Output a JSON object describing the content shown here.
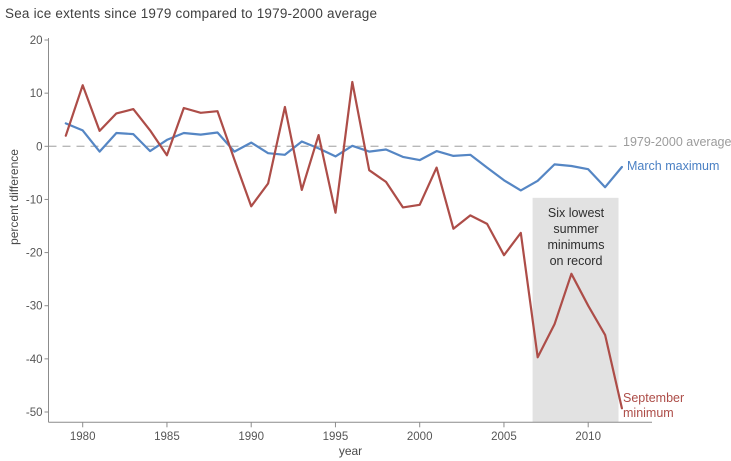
{
  "chart_data": {
    "type": "line",
    "title": "Sea ice extents since 1979 compared to 1979-2000 average",
    "xlabel": "year",
    "ylabel": "percent difference",
    "xlim": [
      1978,
      2014
    ],
    "ylim": [
      -50,
      20
    ],
    "xticks": [
      1980,
      1985,
      1990,
      1995,
      2000,
      2005,
      2010
    ],
    "yticks": [
      20,
      10,
      0,
      -10,
      -20,
      -30,
      -40,
      -50
    ],
    "grid": false,
    "legend_position": "right-edge-inline-labels",
    "zero_line": {
      "value": 0,
      "style": "dashed",
      "label": "1979-2000 average",
      "color": "#b8b8b8"
    },
    "x": [
      1979,
      1980,
      1981,
      1982,
      1983,
      1984,
      1985,
      1986,
      1987,
      1988,
      1989,
      1990,
      1991,
      1992,
      1993,
      1994,
      1995,
      1996,
      1997,
      1998,
      1999,
      2000,
      2001,
      2002,
      2003,
      2004,
      2005,
      2006,
      2007,
      2008,
      2009,
      2010,
      2011,
      2012
    ],
    "series": [
      {
        "name": "March maximum",
        "color": "#5586c4",
        "values": [
          4.3,
          3.0,
          -1.0,
          2.5,
          2.3,
          -0.9,
          1.2,
          2.5,
          2.2,
          2.6,
          -1.0,
          0.7,
          -1.3,
          -1.6,
          0.9,
          -0.4,
          -1.9,
          0.1,
          -1.0,
          -0.6,
          -2.0,
          -2.6,
          -0.9,
          -1.8,
          -1.6,
          -4.0,
          -6.4,
          -8.3,
          -6.5,
          -3.4,
          -3.7,
          -4.3,
          -7.7,
          -3.9
        ]
      },
      {
        "name": "September minimum",
        "color": "#ad4d48",
        "values": [
          2.0,
          11.5,
          2.9,
          6.2,
          7.0,
          3.0,
          -1.7,
          7.2,
          6.3,
          6.6,
          -2.5,
          -11.3,
          -7.0,
          7.4,
          -8.2,
          2.1,
          -12.5,
          12.1,
          -4.5,
          -6.7,
          -11.5,
          -11.0,
          -4.0,
          -15.5,
          -13.0,
          -14.6,
          -20.5,
          -16.3,
          -39.7,
          -33.5,
          -24.0,
          -30.0,
          -35.5,
          -49.3
        ]
      }
    ],
    "annotation_box": {
      "label_lines": [
        "Six lowest",
        "summer",
        "minimums",
        "on record"
      ],
      "x0_year": 2006.7,
      "x1_year": 2011.8,
      "top_value": -9.7,
      "fill": "#e2e2e2"
    }
  },
  "colors": {
    "axis": "#8c8c8c",
    "tick_label": "#565656",
    "title": "#3f3f3f",
    "background": "#ffffff"
  }
}
